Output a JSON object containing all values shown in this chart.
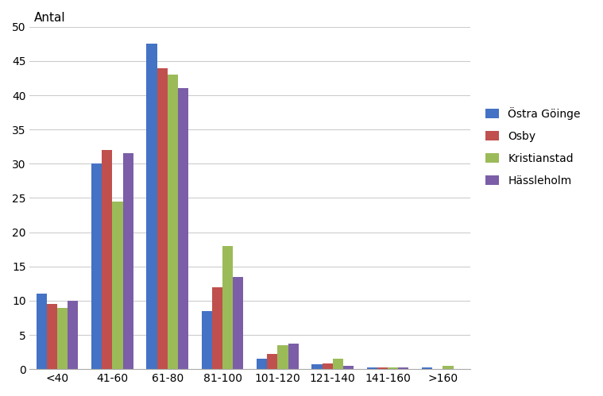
{
  "categories": [
    "<40",
    "41-60",
    "61-80",
    "81-100",
    "101-120",
    "121-140",
    "141-160",
    ">160"
  ],
  "series": {
    "Östra Göinge": [
      11,
      30,
      47.5,
      8.5,
      1.5,
      0.7,
      0.3,
      0.3
    ],
    "Osby": [
      9.5,
      32,
      44,
      12,
      2.2,
      0.8,
      0.3,
      0.0
    ],
    "Kristianstad": [
      9,
      24.5,
      43,
      18,
      3.5,
      1.5,
      0.3,
      0.5
    ],
    "Hässleholm": [
      10,
      31.5,
      41,
      13.5,
      3.7,
      0.5,
      0.2,
      0.0
    ]
  },
  "colors": {
    "Östra Göinge": "#4472C4",
    "Osby": "#C0504D",
    "Kristianstad": "#9BBB59",
    "Hässleholm": "#7B5EA7"
  },
  "ylabel": "Antal",
  "ylim": [
    0,
    50
  ],
  "yticks": [
    0,
    5,
    10,
    15,
    20,
    25,
    30,
    35,
    40,
    45,
    50
  ],
  "background_color": "#FFFFFF",
  "grid_color": "#CCCCCC",
  "bar_width": 0.19
}
